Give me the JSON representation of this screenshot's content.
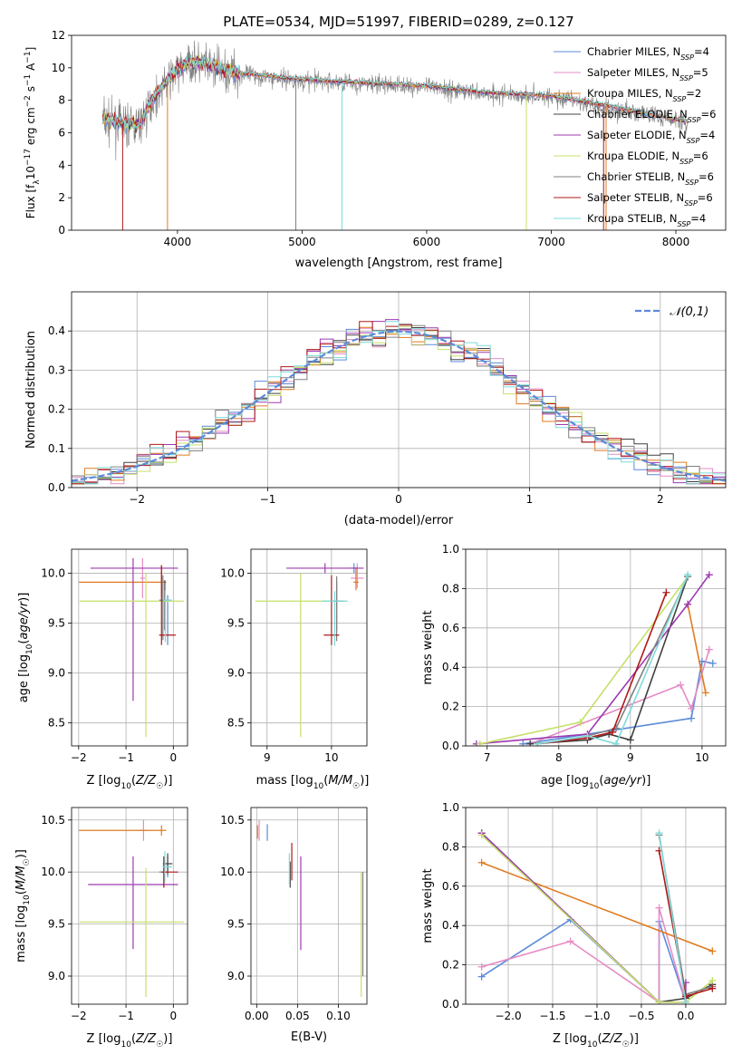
{
  "colors": {
    "chabrier_miles": "#5b8bd9",
    "salpeter_miles": "#e58cc4",
    "kroupa_miles": "#e07b20",
    "chabrier_elodie": "#404040",
    "salpeter_elodie": "#9c3ab0",
    "kroupa_elodie": "#c6e06a",
    "chabrier_stelib": "#808080",
    "salpeter_stelib": "#b01818",
    "kroupa_stelib": "#7fdada",
    "normal": "#5b8bd9"
  },
  "chart_data": [
    {
      "id": "spectrum",
      "type": "line",
      "title": "PLATE=0534, MJD=51997, FIBERID=0289, z=0.127",
      "xlabel": "wavelength [Angstrom, rest frame]",
      "ylabel": "Flux [f_λ 10^-17 erg cm^-2 s^-1 A^-1]",
      "xlim": [
        3150,
        8400
      ],
      "ylim": [
        0,
        12
      ],
      "xticks": [
        "4000",
        "5000",
        "6000",
        "7000",
        "8000"
      ],
      "yticks": [
        "0",
        "2",
        "4",
        "6",
        "8",
        "10",
        "12"
      ],
      "grid": false,
      "legend_position": "top-right",
      "legend": [
        {
          "label": "Chabrier MILES, N",
          "sub": "SSP",
          "tail": "=4",
          "color": "#5b8bd9"
        },
        {
          "label": "Salpeter MILES, N",
          "sub": "SSP",
          "tail": "=5",
          "color": "#e58cc4"
        },
        {
          "label": "Kroupa MILES, N",
          "sub": "SSP",
          "tail": "=2",
          "color": "#e07b20"
        },
        {
          "label": "Chabrier ELODIE, N",
          "sub": "SSP",
          "tail": "=6",
          "color": "#404040"
        },
        {
          "label": "Salpeter ELODIE, N",
          "sub": "SSP",
          "tail": "=4",
          "color": "#9c3ab0"
        },
        {
          "label": "Kroupa ELODIE, N",
          "sub": "SSP",
          "tail": "=6",
          "color": "#c6e06a"
        },
        {
          "label": "Chabrier STELIB, N",
          "sub": "SSP",
          "tail": "=6",
          "color": "#808080"
        },
        {
          "label": "Salpeter STELIB, N",
          "sub": "SSP",
          "tail": "=6",
          "color": "#b01818"
        },
        {
          "label": "Kroupa STELIB, N",
          "sub": "SSP",
          "tail": "=4",
          "color": "#7fdada"
        }
      ],
      "continuum": [
        [
          3400,
          6.8
        ],
        [
          3600,
          6.4
        ],
        [
          3700,
          6.5
        ],
        [
          3800,
          8.0
        ],
        [
          3900,
          9.0
        ],
        [
          4000,
          9.8
        ],
        [
          4100,
          10.3
        ],
        [
          4300,
          10.0
        ],
        [
          4500,
          9.6
        ],
        [
          5000,
          9.2
        ],
        [
          5500,
          9.0
        ],
        [
          6000,
          8.8
        ],
        [
          6500,
          8.4
        ],
        [
          7000,
          8.2
        ],
        [
          7500,
          7.5
        ],
        [
          8100,
          6.6
        ]
      ]
    },
    {
      "id": "residuals",
      "type": "step",
      "xlabel": "(data-model)/error",
      "ylabel": "Normed distribution",
      "xlim": [
        -2.5,
        2.5
      ],
      "ylim": [
        0,
        0.5
      ],
      "xticks": [
        "−2",
        "−1",
        "0",
        "1",
        "2"
      ],
      "yticks": [
        "0.0",
        "0.1",
        "0.2",
        "0.3",
        "0.4"
      ],
      "grid": true,
      "legend_position": "top-right",
      "legend": [
        {
          "label": "𝒩(0,1)",
          "color": "#5b8bd9"
        }
      ],
      "bin_width": 0.1
    },
    {
      "id": "age-vs-Z",
      "type": "errorbar",
      "xlabel": "Z [log10(Z/Z☉)]",
      "ylabel": "age [log10(age/yr)]",
      "xlim": [
        -2.15,
        0.3
      ],
      "ylim": [
        8.27,
        10.24
      ],
      "xticks": [
        "−2",
        "−1",
        "0"
      ],
      "yticks": [
        "8.5",
        "9.0",
        "9.5",
        "10.0"
      ],
      "grid": true,
      "points": [
        {
          "color": "#5b8bd9",
          "x": -0.12,
          "xerr": [
            0.08,
            0.08
          ],
          "y": 9.73,
          "yerr": [
            0.45,
            0.05
          ]
        },
        {
          "color": "#e58cc4",
          "x": -0.65,
          "xerr": [
            0.05,
            0.05
          ],
          "y": 9.95,
          "yerr": [
            0.2,
            0.2
          ]
        },
        {
          "color": "#e07b20",
          "x": -0.25,
          "xerr": [
            1.75,
            0.1
          ],
          "y": 9.91,
          "yerr": [
            0.15,
            0.17
          ]
        },
        {
          "color": "#404040",
          "x": -0.18,
          "xerr": [
            0.03,
            0.03
          ],
          "y": 9.73,
          "yerr": [
            0.3,
            0.2
          ]
        },
        {
          "color": "#9c3ab0",
          "x": -0.85,
          "xerr": [
            0.9,
            0.95
          ],
          "y": 10.05,
          "yerr": [
            1.33,
            0.1
          ]
        },
        {
          "color": "#c6e06a",
          "x": -0.58,
          "xerr": [
            1.4,
            0.8
          ],
          "y": 9.72,
          "yerr": [
            1.36,
            0.28
          ]
        },
        {
          "color": "#808080",
          "x": -0.22,
          "xerr": [
            0.08,
            0.08
          ],
          "y": 9.73,
          "yerr": [
            0.4,
            0.25
          ]
        },
        {
          "color": "#b01818",
          "x": -0.25,
          "xerr": [
            0.05,
            0.3
          ],
          "y": 9.38,
          "yerr": [
            0.1,
            0.7
          ]
        },
        {
          "color": "#7fdada",
          "x": -0.17,
          "xerr": [
            0.05,
            0.12
          ],
          "y": 9.73,
          "yerr": [
            0.42,
            0.1
          ]
        }
      ]
    },
    {
      "id": "age-vs-mass",
      "type": "errorbar",
      "xlabel": "mass [log10(M/M☉)]",
      "xlim": [
        8.75,
        10.55
      ],
      "ylim": [
        8.27,
        10.24
      ],
      "xticks": [
        "9",
        "10"
      ],
      "yticks": [
        "8.5",
        "9.0",
        "9.5",
        "10.0"
      ],
      "grid": true,
      "points": [
        {
          "color": "#5b8bd9",
          "x": 10.35,
          "xerr": [
            0.05,
            0.05
          ],
          "y": 10.05,
          "yerr": [
            0.05,
            0.05
          ]
        },
        {
          "color": "#e58cc4",
          "x": 10.4,
          "xerr": [
            0.1,
            0.1
          ],
          "y": 9.95,
          "yerr": [
            0.1,
            0.15
          ]
        },
        {
          "color": "#e07b20",
          "x": 10.38,
          "xerr": [
            0.04,
            0.04
          ],
          "y": 9.91,
          "yerr": [
            0.08,
            0.15
          ]
        },
        {
          "color": "#404040",
          "x": 10.08,
          "xerr": [
            0.05,
            0.05
          ],
          "y": 9.72,
          "yerr": [
            0.3,
            0.2
          ]
        },
        {
          "color": "#9c3ab0",
          "x": 9.9,
          "xerr": [
            0.6,
            0.6
          ],
          "y": 10.05,
          "yerr": [
            0.05,
            0.05
          ]
        },
        {
          "color": "#c6e06a",
          "x": 9.52,
          "xerr": [
            0.7,
            0.7
          ],
          "y": 9.72,
          "yerr": [
            1.36,
            0.28
          ]
        },
        {
          "color": "#808080",
          "x": 10.08,
          "xerr": [
            0.1,
            0.1
          ],
          "y": 9.72,
          "yerr": [
            0.4,
            0.25
          ]
        },
        {
          "color": "#b01818",
          "x": 10.0,
          "xerr": [
            0.12,
            0.12
          ],
          "y": 9.38,
          "yerr": [
            0.1,
            0.6
          ]
        },
        {
          "color": "#7fdada",
          "x": 10.05,
          "xerr": [
            0.2,
            0.2
          ],
          "y": 9.72,
          "yerr": [
            0.45,
            0.1
          ]
        }
      ]
    },
    {
      "id": "weight-vs-age",
      "type": "line",
      "xlabel": "age [log10(age/yr)]",
      "ylabel": "mass weight",
      "xlim": [
        6.7,
        10.33
      ],
      "ylim": [
        0,
        1
      ],
      "xticks": [
        "7",
        "8",
        "9",
        "10"
      ],
      "yticks": [
        "0.0",
        "0.2",
        "0.4",
        "0.6",
        "0.8",
        "1.0"
      ],
      "grid": true,
      "series": [
        {
          "color": "#5b8bd9",
          "x": [
            7.5,
            9.85,
            10.0,
            10.15
          ],
          "y": [
            0.01,
            0.14,
            0.43,
            0.42
          ]
        },
        {
          "color": "#e58cc4",
          "x": [
            7.6,
            9.7,
            9.85,
            10.1
          ],
          "y": [
            0.01,
            0.31,
            0.19,
            0.49
          ]
        },
        {
          "color": "#e07b20",
          "x": [
            9.8,
            10.05
          ],
          "y": [
            0.72,
            0.27
          ]
        },
        {
          "color": "#404040",
          "x": [
            7.6,
            8.4,
            8.7,
            9.0,
            9.8
          ],
          "y": [
            0.01,
            0.03,
            0.06,
            0.03,
            0.86
          ]
        },
        {
          "color": "#9c3ab0",
          "x": [
            6.85,
            8.4,
            9.8,
            10.1
          ],
          "y": [
            0.01,
            0.06,
            0.72,
            0.87
          ]
        },
        {
          "color": "#c6e06a",
          "x": [
            6.9,
            8.3,
            9.8
          ],
          "y": [
            0.01,
            0.12,
            0.86
          ]
        },
        {
          "color": "#808080",
          "x": [
            7.7,
            8.4,
            8.8,
            9.8
          ],
          "y": [
            0.01,
            0.05,
            0.09,
            0.86
          ]
        },
        {
          "color": "#b01818",
          "x": [
            7.7,
            8.4,
            8.75,
            9.5
          ],
          "y": [
            0.01,
            0.04,
            0.07,
            0.78
          ]
        },
        {
          "color": "#7fdada",
          "x": [
            7.7,
            8.4,
            8.8,
            9.8
          ],
          "y": [
            0.01,
            0.05,
            0.01,
            0.87
          ]
        }
      ]
    },
    {
      "id": "mass-vs-Z",
      "type": "errorbar",
      "xlabel": "Z [log10(Z/Z☉)]",
      "ylabel": "mass [log10(M/M☉)]",
      "xlim": [
        -2.15,
        0.3
      ],
      "ylim": [
        8.73,
        10.62
      ],
      "xticks": [
        "−2",
        "−1",
        "0"
      ],
      "yticks": [
        "9.0",
        "9.5",
        "10.0",
        "10.5"
      ],
      "grid": true,
      "points": [
        {
          "color": "#5b8bd9",
          "x": -0.12,
          "xerr": [
            0.08,
            0.08
          ],
          "y": 10.05,
          "yerr": [
            0.1,
            0.1
          ]
        },
        {
          "color": "#e58cc4",
          "x": -0.63,
          "xerr": [
            0.1,
            0.1
          ],
          "y": 10.4,
          "yerr": [
            0.1,
            0.1
          ]
        },
        {
          "color": "#e07b20",
          "x": -0.25,
          "xerr": [
            1.75,
            0.1
          ],
          "y": 10.4,
          "yerr": [
            0.05,
            0.05
          ]
        },
        {
          "color": "#404040",
          "x": -0.12,
          "xerr": [
            0.1,
            0.1
          ],
          "y": 10.08,
          "yerr": [
            0.1,
            0.1
          ]
        },
        {
          "color": "#9c3ab0",
          "x": -0.85,
          "xerr": [
            0.95,
            0.95
          ],
          "y": 9.88,
          "yerr": [
            0.62,
            0.27
          ]
        },
        {
          "color": "#c6e06a",
          "x": -0.58,
          "xerr": [
            1.4,
            0.8
          ],
          "y": 9.52,
          "yerr": [
            0.72,
            0.52
          ]
        },
        {
          "color": "#808080",
          "x": -0.2,
          "xerr": [
            0.1,
            0.1
          ],
          "y": 10.0,
          "yerr": [
            0.15,
            0.15
          ]
        },
        {
          "color": "#b01818",
          "x": -0.2,
          "xerr": [
            0.05,
            0.3
          ],
          "y": 10.0,
          "yerr": [
            0.15,
            0.15
          ]
        },
        {
          "color": "#7fdada",
          "x": -0.18,
          "xerr": [
            0.05,
            0.15
          ],
          "y": 10.05,
          "yerr": [
            0.15,
            0.15
          ]
        }
      ]
    },
    {
      "id": "mass-vs-EBV",
      "type": "errorbar",
      "xlabel": "E(B-V)",
      "xlim": [
        -0.007,
        0.135
      ],
      "ylim": [
        8.73,
        10.62
      ],
      "xticks": [
        "0.00",
        "0.05",
        "0.10"
      ],
      "yticks": [
        "9.0",
        "9.5",
        "10.0",
        "10.5"
      ],
      "grid": true,
      "points": [
        {
          "color": "#5b8bd9",
          "x": 0.013,
          "y": 10.38,
          "yerr": [
            0.08,
            0.08
          ]
        },
        {
          "color": "#e58cc4",
          "x": 0.003,
          "y": 10.4,
          "yerr": [
            0.1,
            0.1
          ]
        },
        {
          "color": "#e07b20",
          "x": 0.001,
          "y": 10.4,
          "yerr": [
            0.08,
            0.05
          ]
        },
        {
          "color": "#404040",
          "x": 0.041,
          "y": 10.05,
          "yerr": [
            0.2,
            0.05
          ]
        },
        {
          "color": "#9c3ab0",
          "x": 0.054,
          "y": 9.7,
          "yerr": [
            0.45,
            0.45
          ]
        },
        {
          "color": "#c6e06a",
          "x": 0.128,
          "y": 9.4,
          "yerr": [
            0.6,
            0.6
          ]
        },
        {
          "color": "#808080",
          "x": 0.13,
          "y": 9.5,
          "yerr": [
            0.5,
            0.5
          ]
        },
        {
          "color": "#b01818",
          "x": 0.043,
          "y": 10.1,
          "yerr": [
            0.18,
            0.18
          ]
        },
        {
          "color": "#7fdada",
          "x": 0.04,
          "y": 10.03,
          "yerr": [
            0.15,
            0.15
          ]
        }
      ]
    },
    {
      "id": "weight-vs-Z",
      "type": "line",
      "xlabel": "Z [log10(Z/Z☉)]",
      "ylabel": "mass weight",
      "xlim": [
        -2.48,
        0.45
      ],
      "ylim": [
        0,
        1
      ],
      "xticks": [
        "−2.0",
        "−1.5",
        "−1.0",
        "−0.5",
        "0.0"
      ],
      "yticks": [
        "0.0",
        "0.2",
        "0.4",
        "0.6",
        "0.8",
        "1.0"
      ],
      "grid": true,
      "series": [
        {
          "color": "#5b8bd9",
          "x": [
            -2.3,
            -1.3,
            -0.3,
            -0.3,
            0.0
          ],
          "y": [
            0.14,
            0.43,
            0.01,
            0.42,
            0.01
          ]
        },
        {
          "color": "#e58cc4",
          "x": [
            -2.3,
            -1.3,
            -0.3,
            -0.3,
            0.0
          ],
          "y": [
            0.19,
            0.32,
            0.01,
            0.49,
            0.01
          ]
        },
        {
          "color": "#e07b20",
          "x": [
            -2.3,
            0.3
          ],
          "y": [
            0.72,
            0.27
          ]
        },
        {
          "color": "#404040",
          "x": [
            -2.3,
            -0.3,
            0.0,
            0.3
          ],
          "y": [
            0.87,
            0.01,
            0.03,
            0.1
          ]
        },
        {
          "color": "#9c3ab0",
          "x": [
            -2.3,
            -0.3,
            0.0,
            0.0
          ],
          "y": [
            0.87,
            0.01,
            0.01,
            0.11
          ]
        },
        {
          "color": "#c6e06a",
          "x": [
            -2.3,
            -0.3,
            0.0,
            0.3
          ],
          "y": [
            0.86,
            0.01,
            0.01,
            0.12
          ]
        },
        {
          "color": "#808080",
          "x": [
            -0.3,
            0.0,
            0.3
          ],
          "y": [
            0.86,
            0.05,
            0.09
          ]
        },
        {
          "color": "#b01818",
          "x": [
            -0.3,
            0.0,
            0.3
          ],
          "y": [
            0.78,
            0.04,
            0.08
          ]
        },
        {
          "color": "#7fdada",
          "x": [
            -0.3,
            0.0
          ],
          "y": [
            0.87,
            0.01
          ]
        }
      ]
    }
  ]
}
